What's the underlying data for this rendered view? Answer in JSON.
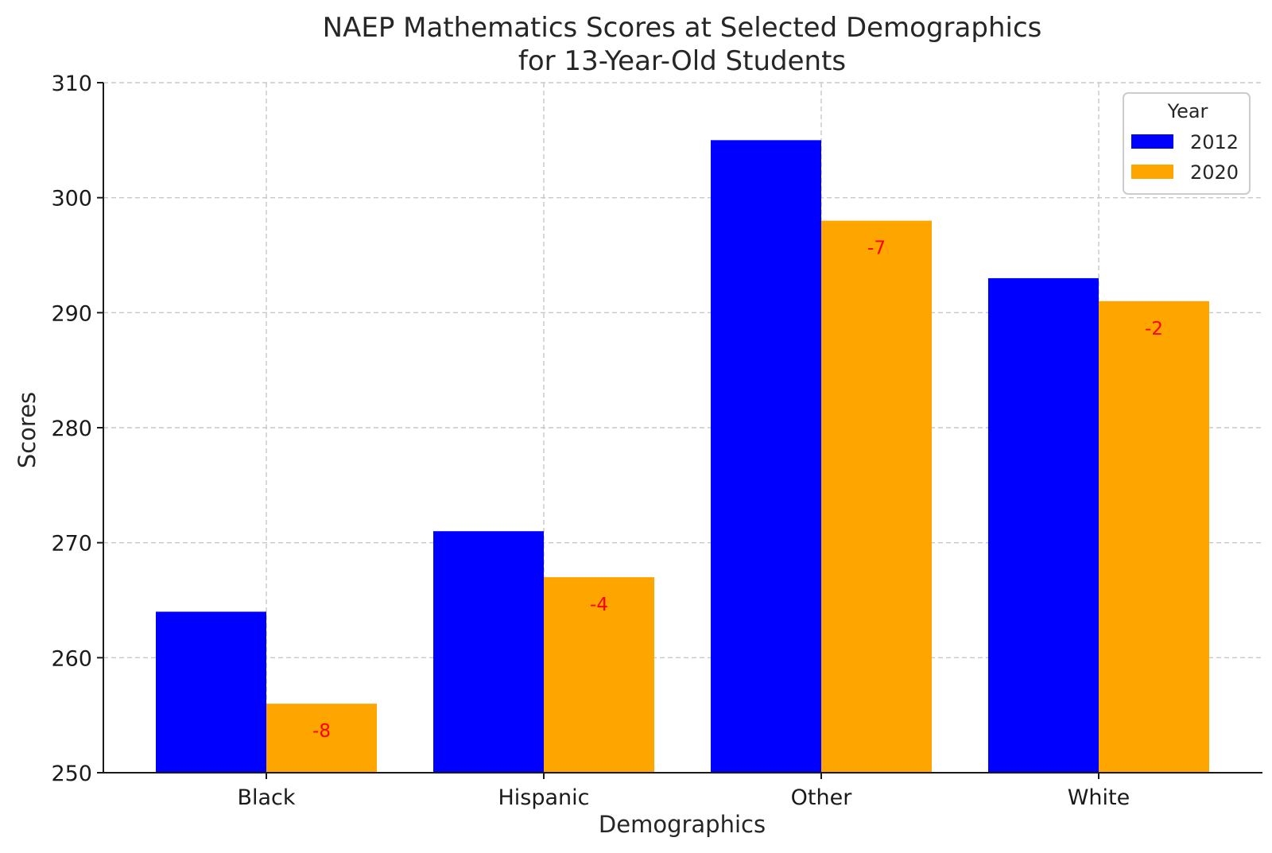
{
  "chart_data": {
    "type": "bar",
    "title": [
      "NAEP Mathematics Scores at Selected Demographics",
      "for 13-Year-Old Students"
    ],
    "xlabel": "Demographics",
    "ylabel": "Scores",
    "categories": [
      "Black",
      "Hispanic",
      "Other",
      "White"
    ],
    "series": [
      {
        "name": "2012",
        "color": "#0000ff",
        "values": [
          264,
          271,
          305,
          293
        ]
      },
      {
        "name": "2020",
        "color": "#ffa500",
        "values": [
          256,
          267,
          298,
          291
        ]
      }
    ],
    "annotations": [
      "-8",
      "-4",
      "-7",
      "-2"
    ],
    "annotation_color": "#ff0000",
    "ylim": [
      250,
      310
    ],
    "yticks": [
      250,
      260,
      270,
      280,
      290,
      300,
      310
    ],
    "grid": true,
    "legend": {
      "title": "Year",
      "placement": "top-right"
    }
  }
}
